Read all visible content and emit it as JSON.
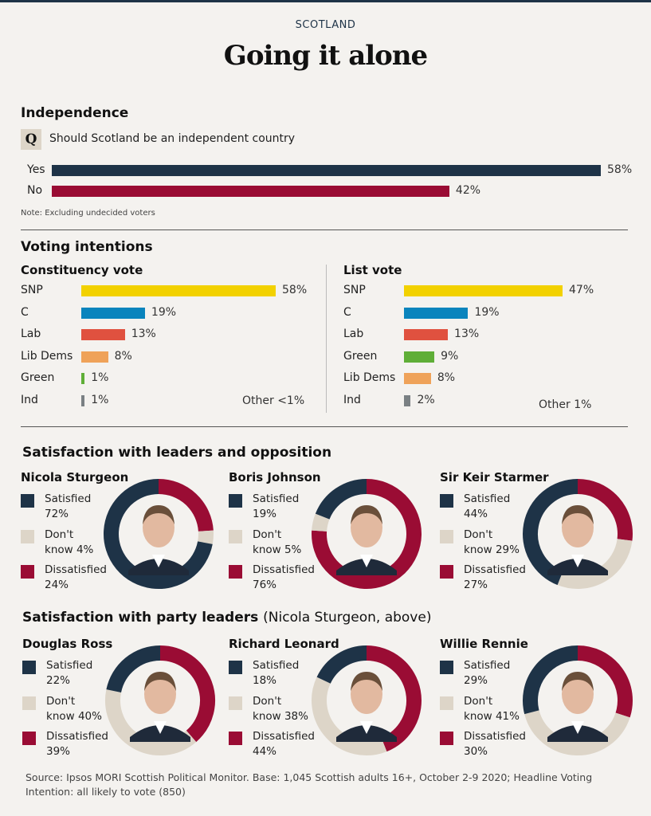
{
  "header": {
    "kicker": "SCOTLAND",
    "title": "Going it alone"
  },
  "colors": {
    "navy": "#1e3347",
    "crimson": "#9a0c34",
    "beige": "#ddd5c8",
    "snp": "#f2d100",
    "con": "#0a84bd",
    "lab": "#e0513f",
    "libdem": "#efa259",
    "green": "#5fae37",
    "ind": "#7a8083"
  },
  "independence": {
    "heading": "Independence",
    "q_badge": "Q",
    "question": "Should Scotland be an independent country",
    "note": "Note: Excluding undecided voters"
  },
  "voting": {
    "heading": "Voting intentions",
    "constituency_heading": "Constituency vote",
    "list_heading": "List vote",
    "constituency_other": "Other <1%",
    "list_other": "Other 1%"
  },
  "satisfaction": {
    "heading": "Satisfaction with leaders and opposition",
    "party_heading": "Satisfaction with party leaders",
    "party_heading_note": "(Nicola Sturgeon, above)",
    "legend": {
      "satisfied": "Satisfied",
      "dont_know_1": "Don't",
      "dont_know_2": "know",
      "dissatisfied": "Dissatisfied"
    }
  },
  "source": "Source: Ipsos MORI Scottish Political Monitor. Base: 1,045 Scottish adults 16+, October 2-9 2020; Headline Voting Intention: all likely to vote (850)",
  "chart_data": [
    {
      "type": "bar",
      "orientation": "horizontal",
      "title": "Independence",
      "categories": [
        "Yes",
        "No"
      ],
      "values": [
        58,
        42
      ],
      "unit": "%",
      "colors": [
        "#1e3347",
        "#9a0c34"
      ]
    },
    {
      "type": "bar",
      "orientation": "horizontal",
      "title": "Constituency vote",
      "categories": [
        "SNP",
        "C",
        "Lab",
        "Lib Dems",
        "Green",
        "Ind"
      ],
      "values": [
        58,
        19,
        13,
        8,
        1,
        1
      ],
      "unit": "%",
      "colors": [
        "#f2d100",
        "#0a84bd",
        "#e0513f",
        "#efa259",
        "#5fae37",
        "#7a8083"
      ]
    },
    {
      "type": "bar",
      "orientation": "horizontal",
      "title": "List vote",
      "categories": [
        "SNP",
        "C",
        "Lab",
        "Green",
        "Lib Dems",
        "Ind"
      ],
      "values": [
        47,
        19,
        13,
        9,
        8,
        2
      ],
      "unit": "%",
      "colors": [
        "#f2d100",
        "#0a84bd",
        "#e0513f",
        "#5fae37",
        "#efa259",
        "#7a8083"
      ]
    },
    {
      "type": "pie",
      "style": "donut",
      "leaders": [
        {
          "name": "Nicola Sturgeon",
          "satisfied": 72,
          "dont_know": 4,
          "dissatisfied": 24
        },
        {
          "name": "Boris Johnson",
          "satisfied": 19,
          "dont_know": 5,
          "dissatisfied": 76
        },
        {
          "name": "Sir Keir Starmer",
          "satisfied": 44,
          "dont_know": 29,
          "dissatisfied": 27
        },
        {
          "name": "Douglas Ross",
          "satisfied": 22,
          "dont_know": 40,
          "dissatisfied": 39
        },
        {
          "name": "Richard Leonard",
          "satisfied": 18,
          "dont_know": 38,
          "dissatisfied": 44
        },
        {
          "name": "Willie Rennie",
          "satisfied": 29,
          "dont_know": 41,
          "dissatisfied": 30
        }
      ]
    }
  ]
}
